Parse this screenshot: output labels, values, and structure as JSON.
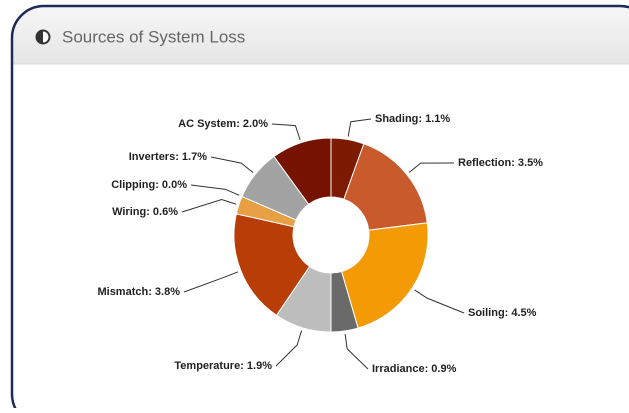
{
  "header": {
    "title": "Sources of System Loss"
  },
  "chart_data": {
    "type": "pie",
    "values": [
      1.1,
      3.5,
      4.5,
      0.9,
      1.9,
      3.8,
      0.6,
      0.0,
      1.7,
      2.0
    ],
    "value_labels": [
      "Shading: 1.1%",
      "Reflection: 3.5%",
      "Soiling: 4.5%",
      "Irradiance: 0.9%",
      "Temperature: 1.9%",
      "Mismatch: 3.8%",
      "Wiring: 0.6%",
      "Clipping: 0.0%",
      "Inverters: 1.7%",
      "AC System: 2.0%"
    ],
    "colors": [
      "#7d1a02",
      "#c85a2c",
      "#f39a05",
      "#6a6a6a",
      "#bdbdbd",
      "#b83d06",
      "#e8a045",
      "#d5873e",
      "#a3a3a3",
      "#761200"
    ]
  }
}
